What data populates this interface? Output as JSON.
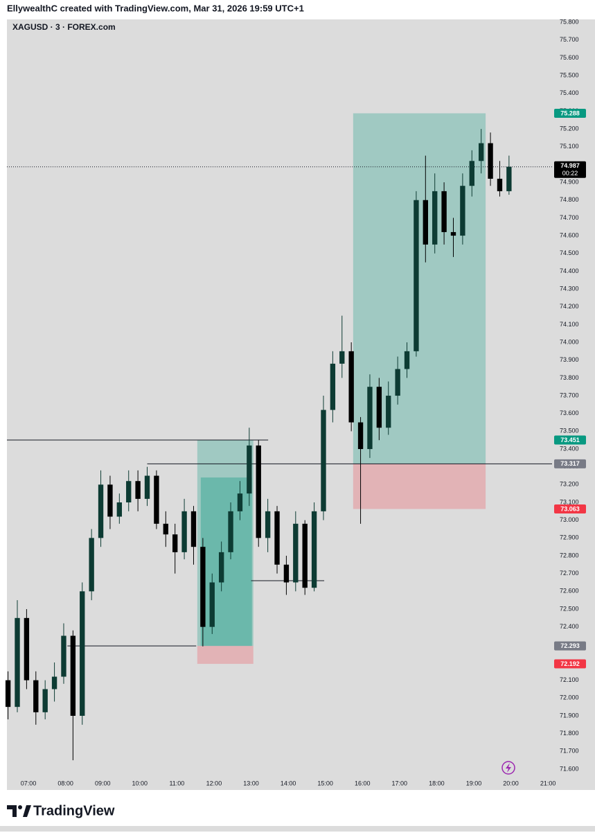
{
  "header": "EllywealthC created with TradingView.com, Mar 31, 2026 19:59 UTC+1",
  "footer": "TradingView",
  "chart_data": {
    "type": "candlestick",
    "title": "XAGUSD · 3 · FOREX.com",
    "up_color": "#0d3b33",
    "down_color": "#000000",
    "x": [
      6.45,
      6.7,
      6.95,
      7.2,
      7.45,
      7.7,
      7.95,
      8.2,
      8.45,
      8.7,
      8.95,
      9.2,
      9.45,
      9.7,
      9.95,
      10.2,
      10.45,
      10.7,
      10.95,
      11.2,
      11.45,
      11.7,
      11.95,
      12.2,
      12.45,
      12.7,
      12.95,
      13.2,
      13.45,
      13.7,
      13.95,
      14.2,
      14.45,
      14.7,
      14.95,
      15.2,
      15.45,
      15.7,
      15.95,
      16.2,
      16.45,
      16.7,
      16.95,
      17.2,
      17.45,
      17.7,
      17.95,
      18.2,
      18.45,
      18.7,
      18.95,
      19.2,
      19.45,
      19.7,
      19.95
    ],
    "open": [
      72.1,
      71.95,
      72.45,
      72.1,
      71.92,
      72.05,
      72.12,
      72.35,
      71.9,
      72.6,
      72.9,
      73.2,
      73.02,
      73.1,
      73.22,
      73.12,
      73.25,
      72.98,
      72.92,
      72.82,
      73.05,
      72.85,
      72.4,
      72.65,
      72.82,
      73.05,
      73.15,
      73.42,
      72.9,
      73.05,
      72.75,
      72.65,
      72.98,
      72.62,
      73.05,
      73.62,
      73.88,
      73.95,
      73.55,
      73.4,
      73.75,
      73.52,
      73.7,
      73.85,
      73.95,
      74.8,
      74.55,
      74.85,
      74.62,
      74.6,
      74.88,
      75.02,
      75.12,
      74.92,
      74.85
    ],
    "high": [
      72.15,
      72.55,
      72.5,
      72.15,
      72.1,
      72.2,
      72.42,
      72.38,
      72.65,
      72.95,
      73.28,
      73.25,
      73.15,
      73.28,
      73.28,
      73.3,
      73.28,
      73.05,
      72.98,
      73.12,
      73.08,
      72.9,
      72.7,
      72.88,
      73.1,
      73.22,
      73.52,
      73.45,
      73.12,
      73.08,
      72.8,
      73.05,
      73.0,
      73.1,
      73.7,
      73.95,
      74.15,
      74.0,
      73.58,
      73.82,
      73.8,
      73.78,
      73.92,
      74.0,
      74.85,
      75.05,
      74.95,
      74.9,
      74.7,
      74.95,
      75.08,
      75.2,
      75.18,
      75.02,
      75.05
    ],
    "low": [
      71.88,
      71.92,
      72.05,
      71.85,
      71.88,
      71.98,
      72.08,
      71.65,
      71.85,
      72.55,
      72.85,
      72.95,
      72.98,
      73.05,
      73.05,
      73.08,
      72.95,
      72.85,
      72.7,
      72.78,
      72.75,
      72.29,
      72.36,
      72.6,
      72.78,
      73.0,
      73.08,
      72.85,
      72.82,
      72.7,
      72.58,
      72.6,
      72.58,
      72.6,
      73.0,
      73.55,
      73.8,
      73.5,
      72.98,
      73.35,
      73.45,
      73.48,
      73.65,
      73.8,
      73.92,
      74.45,
      74.5,
      74.55,
      74.48,
      74.55,
      74.82,
      74.95,
      74.88,
      74.82,
      74.83
    ],
    "close": [
      71.95,
      72.45,
      72.1,
      71.92,
      72.05,
      72.12,
      72.35,
      71.9,
      72.6,
      72.9,
      73.2,
      73.02,
      73.1,
      73.22,
      73.12,
      73.25,
      72.98,
      72.92,
      72.82,
      73.05,
      72.85,
      72.4,
      72.65,
      72.82,
      73.05,
      73.15,
      73.42,
      72.9,
      73.05,
      72.75,
      72.65,
      72.98,
      72.62,
      73.05,
      73.62,
      73.88,
      73.95,
      73.55,
      73.4,
      73.75,
      73.52,
      73.7,
      73.85,
      73.95,
      74.8,
      74.55,
      74.85,
      74.62,
      74.6,
      74.88,
      75.02,
      75.12,
      74.92,
      74.85,
      74.987
    ],
    "xlim": [
      6.42,
      21.11
    ],
    "ylim": [
      71.483,
      75.816
    ],
    "xticks": [
      {
        "value": 7,
        "label": "07:00"
      },
      {
        "value": 8,
        "label": "08:00"
      },
      {
        "value": 9,
        "label": "09:00"
      },
      {
        "value": 10,
        "label": "10:00"
      },
      {
        "value": 11,
        "label": "11:00"
      },
      {
        "value": 12,
        "label": "12:00"
      },
      {
        "value": 13,
        "label": "13:00"
      },
      {
        "value": 14,
        "label": "14:00"
      },
      {
        "value": 15,
        "label": "15:00"
      },
      {
        "value": 16,
        "label": "16:00"
      },
      {
        "value": 17,
        "label": "17:00"
      },
      {
        "value": 18,
        "label": "18:00"
      },
      {
        "value": 19,
        "label": "19:00"
      },
      {
        "value": 20,
        "label": "20:00"
      },
      {
        "value": 21,
        "label": "21:00"
      }
    ],
    "yticks": [
      {
        "value": 71.6,
        "label": "71.600"
      },
      {
        "value": 71.7,
        "label": "71.700"
      },
      {
        "value": 71.8,
        "label": "71.800"
      },
      {
        "value": 71.9,
        "label": "71.900"
      },
      {
        "value": 72.0,
        "label": "72.000"
      },
      {
        "value": 72.1,
        "label": "72.100"
      },
      {
        "value": 72.2,
        "label": "72.200"
      },
      {
        "value": 72.3,
        "label": "72.300"
      },
      {
        "value": 72.4,
        "label": "72.400"
      },
      {
        "value": 72.5,
        "label": "72.500"
      },
      {
        "value": 72.6,
        "label": "72.600"
      },
      {
        "value": 72.7,
        "label": "72.700"
      },
      {
        "value": 72.8,
        "label": "72.800"
      },
      {
        "value": 72.9,
        "label": "72.900"
      },
      {
        "value": 73.0,
        "label": "73.000"
      },
      {
        "value": 73.1,
        "label": "73.100"
      },
      {
        "value": 73.2,
        "label": "73.200"
      },
      {
        "value": 73.3,
        "label": "73.300"
      },
      {
        "value": 73.4,
        "label": "73.400"
      },
      {
        "value": 73.5,
        "label": "73.500"
      },
      {
        "value": 73.6,
        "label": "73.600"
      },
      {
        "value": 73.7,
        "label": "73.700"
      },
      {
        "value": 73.8,
        "label": "73.800"
      },
      {
        "value": 73.9,
        "label": "73.900"
      },
      {
        "value": 74.0,
        "label": "74.000"
      },
      {
        "value": 74.1,
        "label": "74.100"
      },
      {
        "value": 74.2,
        "label": "74.200"
      },
      {
        "value": 74.3,
        "label": "74.300"
      },
      {
        "value": 74.4,
        "label": "74.400"
      },
      {
        "value": 74.5,
        "label": "74.500"
      },
      {
        "value": 74.6,
        "label": "74.600"
      },
      {
        "value": 74.7,
        "label": "74.700"
      },
      {
        "value": 74.8,
        "label": "74.800"
      },
      {
        "value": 74.9,
        "label": "74.900"
      },
      {
        "value": 75.0,
        "label": "75.000"
      },
      {
        "value": 75.1,
        "label": "75.100"
      },
      {
        "value": 75.2,
        "label": "75.200"
      },
      {
        "value": 75.3,
        "label": "75.300"
      },
      {
        "value": 75.4,
        "label": "75.400"
      },
      {
        "value": 75.5,
        "label": "75.500"
      },
      {
        "value": 75.6,
        "label": "75.600"
      },
      {
        "value": 75.7,
        "label": "75.700"
      },
      {
        "value": 75.8,
        "label": "75.800"
      }
    ],
    "hlines": [
      {
        "value": 73.451,
        "start": 6.42,
        "end": 13.46
      },
      {
        "value": 73.317,
        "start": 10.2,
        "end": 21.11
      },
      {
        "value": 72.293,
        "start": 8.05,
        "end": 11.52
      },
      {
        "value": 72.66,
        "start": 13.0,
        "end": 14.97
      }
    ],
    "target_color": "#089981",
    "stop_color": "#f23645",
    "entry_color": "#787b86",
    "positions": [
      {
        "start": 11.55,
        "end": 13.06,
        "entry": 72.293,
        "target": 73.451,
        "stop": 72.192,
        "filled_to": 73.24
      },
      {
        "start": 15.75,
        "end": 19.32,
        "entry": 73.317,
        "target": 75.288,
        "stop": 73.063
      }
    ],
    "last_price": {
      "value": 74.987,
      "countdown": "00:22"
    }
  }
}
